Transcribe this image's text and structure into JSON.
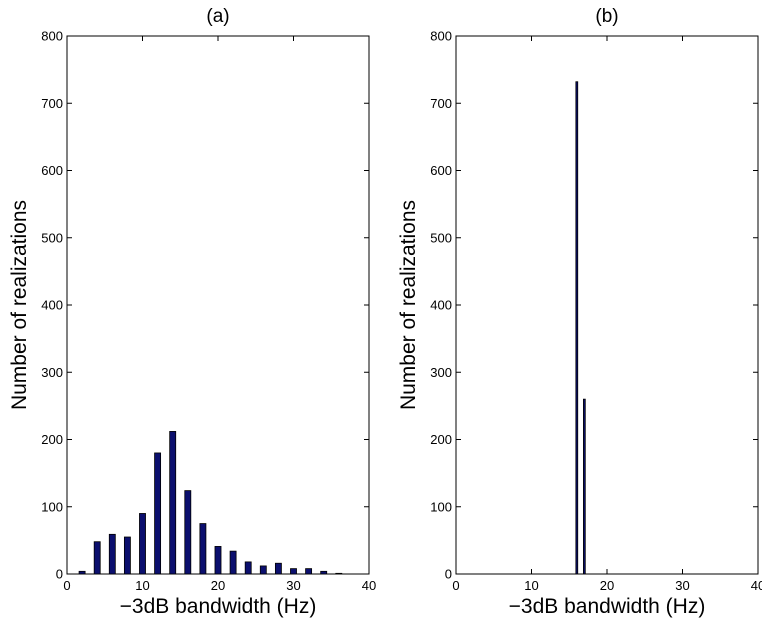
{
  "chart_data": [
    {
      "type": "bar",
      "title": "(a)",
      "xlabel": "−3dB bandwidth (Hz)",
      "ylabel": "Number of realizations",
      "xlim": [
        0,
        40
      ],
      "ylim": [
        0,
        800
      ],
      "xticks": [
        0,
        10,
        20,
        30,
        40
      ],
      "yticks": [
        0,
        100,
        200,
        300,
        400,
        500,
        600,
        700,
        800
      ],
      "x": [
        2,
        4,
        6,
        8,
        10,
        12,
        14,
        16,
        18,
        20,
        22,
        24,
        26,
        28,
        30,
        32,
        34,
        36
      ],
      "values": [
        4,
        48,
        59,
        55,
        90,
        180,
        212,
        124,
        75,
        41,
        34,
        18,
        12,
        16,
        8,
        8,
        4,
        1
      ],
      "bar_width": 0.8,
      "color": "#0b0f6e",
      "grid": false
    },
    {
      "type": "bar",
      "title": "(b)",
      "xlabel": "−3dB bandwidth (Hz)",
      "ylabel": "Number of realizations",
      "xlim": [
        0,
        40
      ],
      "ylim": [
        0,
        800
      ],
      "xticks": [
        0,
        10,
        20,
        30,
        40
      ],
      "yticks": [
        0,
        100,
        200,
        300,
        400,
        500,
        600,
        700,
        800
      ],
      "x": [
        16,
        17
      ],
      "values": [
        732,
        260
      ],
      "bar_width": 0.25,
      "color": "#0b0f6e",
      "grid": false
    }
  ]
}
